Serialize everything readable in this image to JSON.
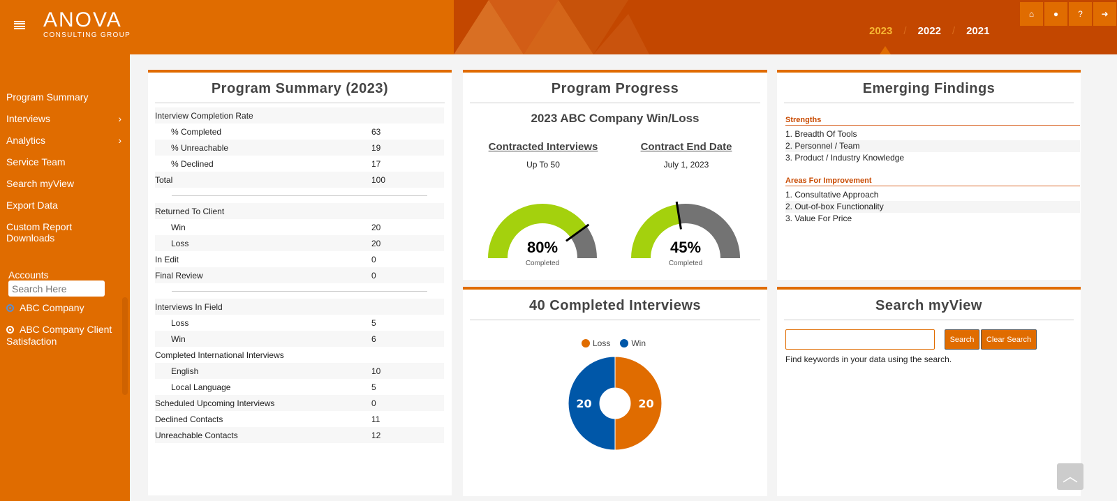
{
  "header": {
    "logo_main": "ANOVA",
    "logo_sub": "CONSULTING GROUP",
    "years": [
      "2023",
      "2022",
      "2021"
    ],
    "active_year": "2023",
    "icons": [
      "home-icon",
      "user-icon",
      "help-icon",
      "logout-icon"
    ]
  },
  "sidebar": {
    "items": [
      {
        "label": "Program Summary"
      },
      {
        "label": "Interviews",
        "chevron": "›"
      },
      {
        "label": "Analytics",
        "chevron": "›"
      },
      {
        "label": "Service Team"
      },
      {
        "label": "Search myView"
      },
      {
        "label": "Export Data"
      },
      {
        "label": "Custom Report Downloads"
      }
    ],
    "accounts_label": "Accounts",
    "search_placeholder": "Search Here",
    "accounts": [
      {
        "label": "ABC Company",
        "selected": true
      },
      {
        "label": "ABC Company Client Satisfaction",
        "selected": false
      }
    ]
  },
  "summary": {
    "title": "Program Summary (2023)",
    "rows": [
      {
        "label": "Interview Completion Rate",
        "value": ""
      },
      {
        "label": "% Completed",
        "value": "63",
        "indent": true
      },
      {
        "label": "% Unreachable",
        "value": "19",
        "indent": true
      },
      {
        "label": "% Declined",
        "value": "17",
        "indent": true
      },
      {
        "label": "Total",
        "value": "100"
      },
      {
        "divider": true
      },
      {
        "label": "Returned To Client",
        "value": ""
      },
      {
        "label": "Win",
        "value": "20",
        "indent": true
      },
      {
        "label": "Loss",
        "value": "20",
        "indent": true
      },
      {
        "label": "In Edit",
        "value": "0"
      },
      {
        "label": "Final Review",
        "value": "0"
      },
      {
        "divider": true
      },
      {
        "label": "Interviews In Field",
        "value": ""
      },
      {
        "label": "Loss",
        "value": "5",
        "indent": true
      },
      {
        "label": "Win",
        "value": "6",
        "indent": true
      },
      {
        "label": "Completed International Interviews",
        "value": ""
      },
      {
        "label": "English",
        "value": "10",
        "indent": true
      },
      {
        "label": "Local Language",
        "value": "5",
        "indent": true
      },
      {
        "label": "Scheduled Upcoming Interviews",
        "value": "0"
      },
      {
        "label": "Declined Contacts",
        "value": "11"
      },
      {
        "label": "Unreachable Contacts",
        "value": "12"
      }
    ]
  },
  "progress": {
    "title": "Program Progress",
    "subtitle": "2023 ABC Company Win/Loss",
    "gauges": [
      {
        "heading": "Contracted Interviews",
        "value_text": "Up To 50",
        "percent": 80,
        "percent_label": "80%",
        "caption": "Completed"
      },
      {
        "heading": "Contract End Date",
        "value_text": "July 1, 2023",
        "percent": 45,
        "percent_label": "45%",
        "caption": "Completed"
      }
    ],
    "colors": {
      "fill": "#a4d10d",
      "rest": "#737373"
    }
  },
  "findings": {
    "title": "Emerging Findings",
    "strengths_label": "Strengths",
    "strengths": [
      "1. Breadth Of Tools",
      "2. Personnel / Team",
      "3. Product / Industry Knowledge"
    ],
    "improvement_label": "Areas For Improvement",
    "improvements": [
      "1. Consultative Approach",
      "2. Out-of-box Functionality",
      "3. Value For Price"
    ]
  },
  "completed": {
    "title": "40 Completed Interviews",
    "chart_data": {
      "type": "pie",
      "donut": true,
      "categories": [
        "Loss",
        "Win"
      ],
      "values": [
        20,
        20
      ],
      "colors": [
        "#e06c00",
        "#0057a8"
      ],
      "legend": "top"
    }
  },
  "search": {
    "title": "Search myView",
    "input_value": "",
    "search_label": "Search",
    "clear_label": "Clear Search",
    "hint": "Find keywords in your data using the search."
  },
  "scroll_top_icon": "chevron-up-icon"
}
